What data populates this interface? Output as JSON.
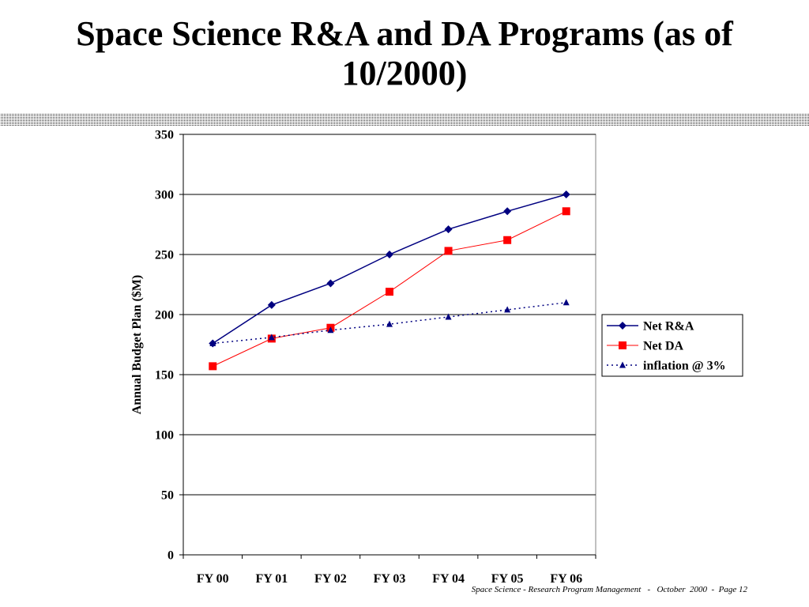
{
  "title": "Space Science R&A and DA Programs (as of 10/2000)",
  "footer": "Space Science - Research Program Management   -   October  2000  -  Page 12",
  "chart_data": {
    "type": "line",
    "categories": [
      "FY 00",
      "FY 01",
      "FY 02",
      "FY 03",
      "FY 04",
      "FY 05",
      "FY 06"
    ],
    "ylabel": "Annual Budget Plan ($M)",
    "xlabel": "",
    "ylim": [
      0,
      350
    ],
    "yticks": [
      0,
      50,
      100,
      150,
      200,
      250,
      300,
      350
    ],
    "grid": "horizontal",
    "legend_position": "right",
    "series": [
      {
        "name": "Net R&A",
        "values": [
          176,
          208,
          226,
          250,
          271,
          286,
          300
        ],
        "color": "#000080",
        "marker": "diamond",
        "line": "solid"
      },
      {
        "name": "Net DA",
        "values": [
          157,
          180,
          189,
          219,
          253,
          262,
          286
        ],
        "color": "#ff0000",
        "marker": "square",
        "line": "solid"
      },
      {
        "name": "inflation @ 3%",
        "values": [
          176,
          181,
          187,
          192,
          198,
          204,
          210
        ],
        "color": "#000080",
        "marker": "triangle",
        "line": "dotted"
      }
    ]
  }
}
